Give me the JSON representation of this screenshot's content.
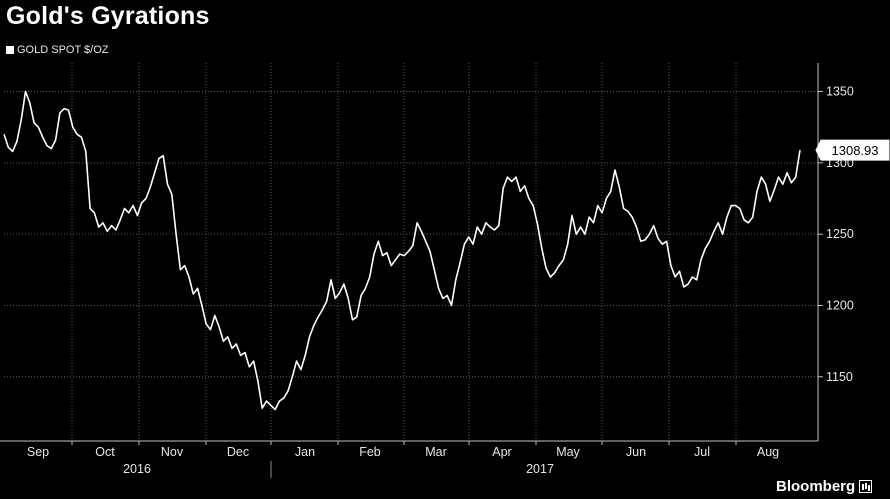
{
  "chart_data": {
    "type": "line",
    "title": "Gold's Gyrations",
    "legend": "GOLD SPOT $/OZ",
    "series_name": "GOLD SPOT $/OZ",
    "ylim": [
      1105,
      1370
    ],
    "yticks": [
      1150,
      1200,
      1250,
      1300,
      1350
    ],
    "x_month_ticks": [
      "Sep",
      "Oct",
      "Nov",
      "Dec",
      "Jan",
      "Feb",
      "Mar",
      "Apr",
      "May",
      "Jun",
      "Jul",
      "Aug"
    ],
    "years": [
      "2016",
      "2017"
    ],
    "last_value_label": "1308.93",
    "grid": true,
    "line_color": "#ffffff",
    "values": [
      1320,
      1311,
      1308,
      1315,
      1330,
      1350,
      1342,
      1328,
      1325,
      1318,
      1312,
      1310,
      1316,
      1335,
      1338,
      1337,
      1325,
      1320,
      1318,
      1308,
      1268,
      1265,
      1255,
      1258,
      1252,
      1256,
      1253,
      1260,
      1268,
      1265,
      1270,
      1263,
      1272,
      1275,
      1283,
      1293,
      1303,
      1305,
      1285,
      1278,
      1250,
      1225,
      1228,
      1220,
      1208,
      1212,
      1200,
      1187,
      1183,
      1193,
      1185,
      1175,
      1178,
      1170,
      1173,
      1165,
      1167,
      1157,
      1161,
      1147,
      1128,
      1133,
      1130,
      1127,
      1133,
      1135,
      1140,
      1150,
      1161,
      1155,
      1165,
      1178,
      1186,
      1192,
      1197,
      1203,
      1218,
      1205,
      1209,
      1215,
      1205,
      1190,
      1192,
      1207,
      1212,
      1220,
      1236,
      1245,
      1235,
      1237,
      1228,
      1232,
      1236,
      1235,
      1238,
      1242,
      1258,
      1252,
      1245,
      1238,
      1225,
      1212,
      1205,
      1207,
      1200,
      1218,
      1230,
      1243,
      1248,
      1243,
      1255,
      1250,
      1258,
      1255,
      1253,
      1256,
      1282,
      1290,
      1287,
      1290,
      1280,
      1284,
      1275,
      1270,
      1257,
      1240,
      1226,
      1220,
      1223,
      1228,
      1232,
      1243,
      1263,
      1250,
      1255,
      1250,
      1262,
      1258,
      1270,
      1265,
      1275,
      1280,
      1295,
      1283,
      1268,
      1266,
      1262,
      1255,
      1245,
      1246,
      1250,
      1256,
      1247,
      1243,
      1245,
      1228,
      1220,
      1224,
      1213,
      1215,
      1220,
      1218,
      1232,
      1240,
      1245,
      1252,
      1258,
      1250,
      1262,
      1270,
      1270,
      1268,
      1260,
      1258,
      1262,
      1280,
      1290,
      1285,
      1273,
      1281,
      1290,
      1285,
      1293,
      1286,
      1290,
      1308.93
    ]
  },
  "brand": {
    "name": "Bloomberg"
  }
}
